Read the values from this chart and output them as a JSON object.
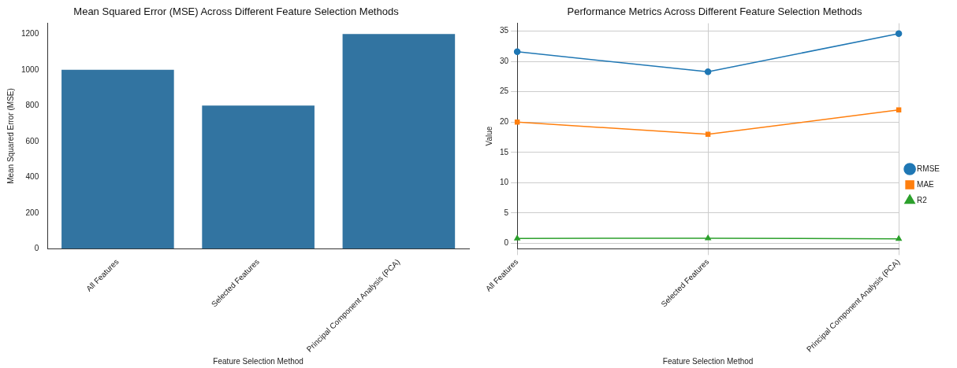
{
  "chart_data": [
    {
      "type": "bar",
      "title": "Mean Squared Error (MSE) Across Different Feature Selection Methods",
      "xlabel": "Feature Selection Method",
      "ylabel": "Mean Squared Error (MSE)",
      "categories": [
        "All Features",
        "Selected Features",
        "Principal Component Analysis (PCA)"
      ],
      "values": [
        1000,
        800,
        1200
      ],
      "color": "#3274a1",
      "ylim": [
        0,
        1260
      ],
      "yticks": [
        0,
        200,
        400,
        600,
        800,
        1000,
        1200
      ],
      "grid": false,
      "legend": false
    },
    {
      "type": "line",
      "title": "Performance Metrics Across Different Feature Selection Methods",
      "xlabel": "Feature Selection Method",
      "ylabel": "Value",
      "categories": [
        "All Features",
        "Selected Features",
        "Principal Component Analysis (PCA)"
      ],
      "series": [
        {
          "name": "RMSE",
          "color": "#1f77b4",
          "values": [
            31.6,
            28.3,
            34.6
          ],
          "marker": "circle"
        },
        {
          "name": "MAE",
          "color": "#ff7f0e",
          "values": [
            20,
            18,
            22
          ],
          "marker": "square"
        },
        {
          "name": "R2",
          "color": "#2ca02c",
          "values": [
            0.8,
            0.85,
            0.75
          ],
          "marker": "triangle"
        }
      ],
      "ylim": [
        -0.9,
        36.3
      ],
      "yticks": [
        0,
        5,
        10,
        15,
        20,
        25,
        30,
        35
      ],
      "grid": true,
      "legend": "right"
    }
  ]
}
